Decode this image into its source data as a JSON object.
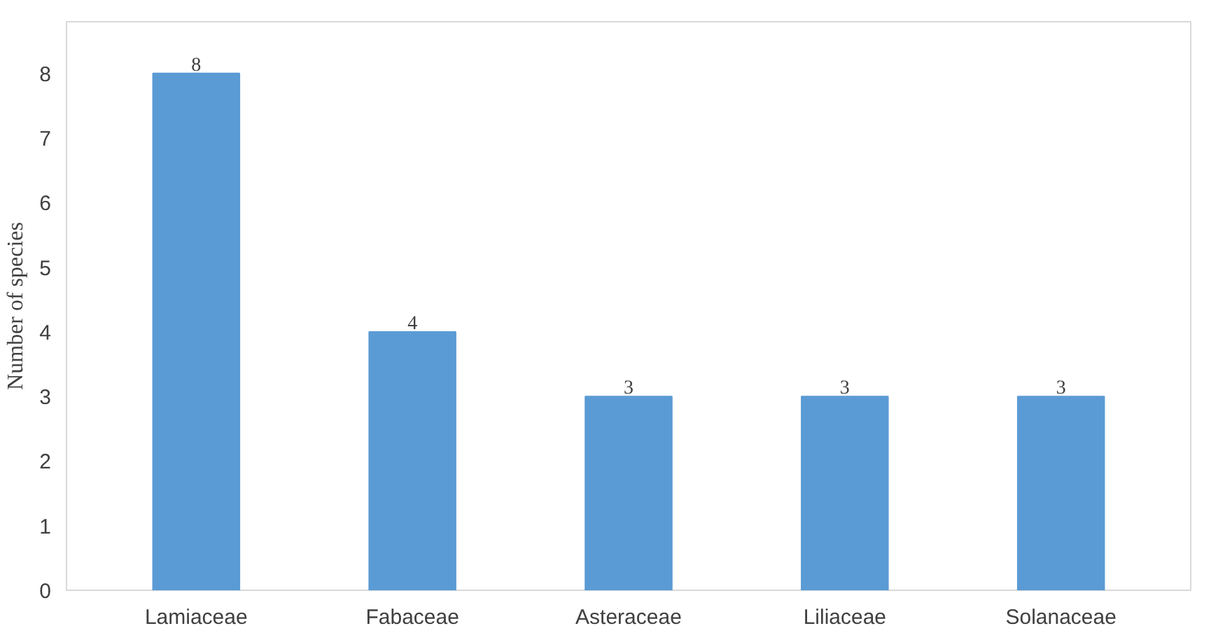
{
  "chart_data": {
    "type": "bar",
    "ylabel": "Number of species",
    "categories": [
      "Lamiaceae",
      "Fabaceae",
      "Asteraceae",
      "Liliaceae",
      "Solanaceae"
    ],
    "values": [
      8,
      4,
      3,
      3,
      3
    ],
    "color": "#5b9bd5",
    "ylim": [
      0,
      8.8
    ],
    "yticks": [
      0,
      1,
      2,
      3,
      4,
      5,
      6,
      7,
      8
    ],
    "grid": false,
    "data_labels": true
  }
}
